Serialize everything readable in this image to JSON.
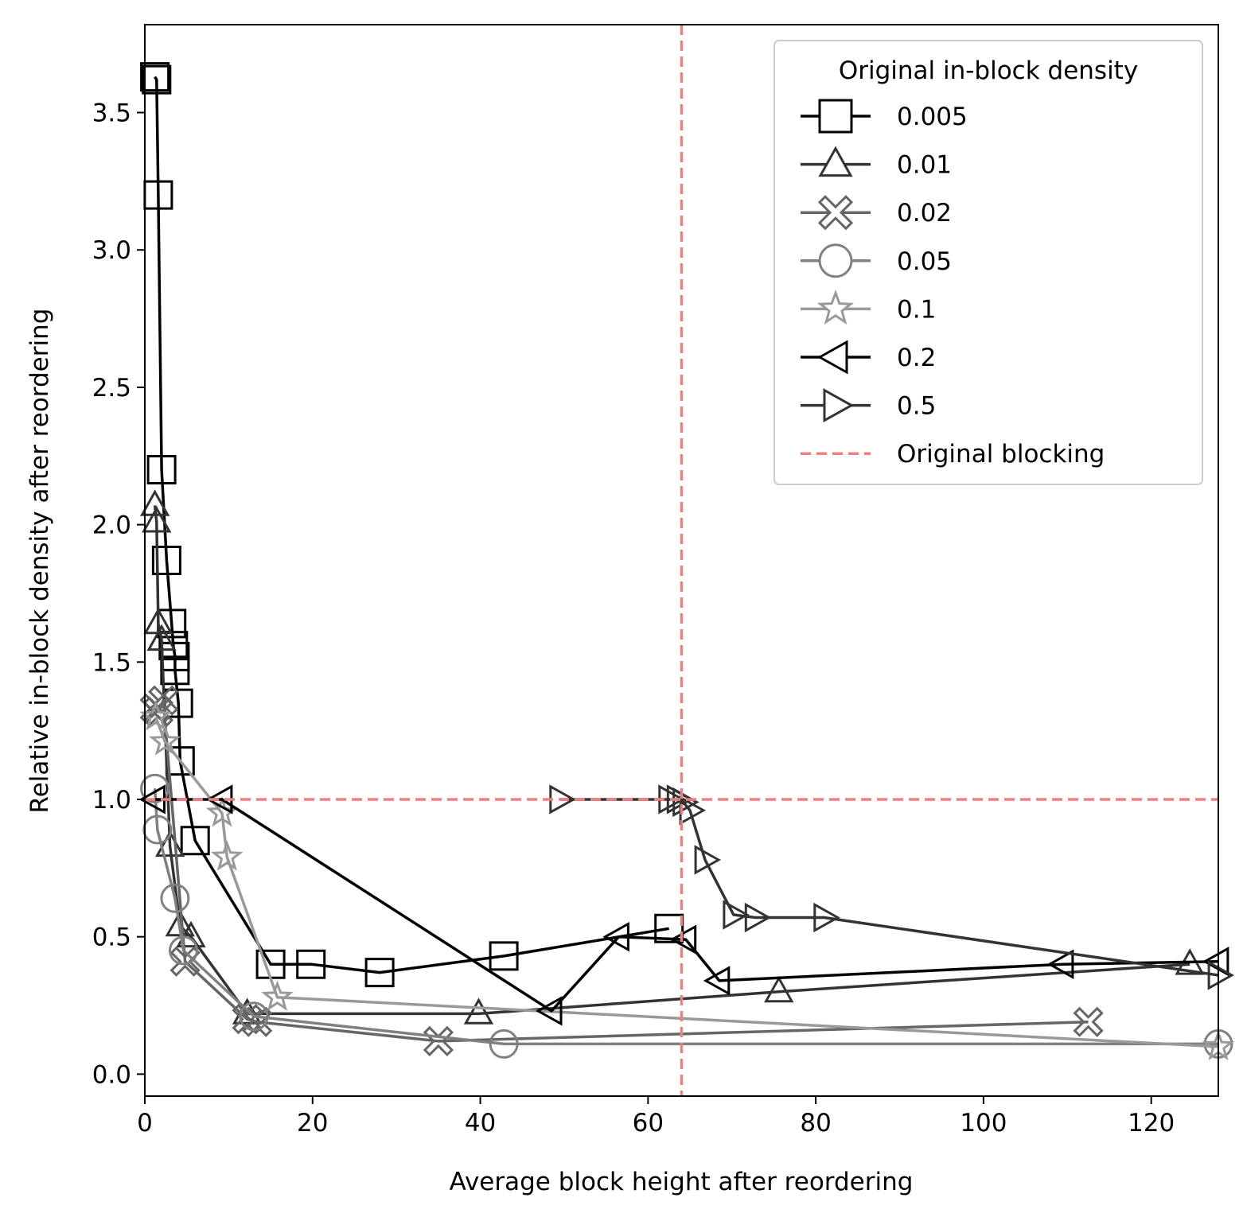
{
  "chart_data": {
    "type": "line",
    "xlabel": "Average block height after reordering",
    "ylabel": "Relative in-block density after reordering",
    "xlim": [
      0,
      128
    ],
    "ylim": [
      -0.08,
      3.82
    ],
    "xticks": [
      0,
      20,
      40,
      60,
      80,
      100,
      120
    ],
    "yticks": [
      0.0,
      0.5,
      1.0,
      1.5,
      2.0,
      2.5,
      3.0,
      3.5
    ],
    "ytick_labels": [
      "0.0",
      "0.5",
      "1.0",
      "1.5",
      "2.0",
      "2.5",
      "3.0",
      "3.5"
    ],
    "grid": false,
    "legend": {
      "title": "Original in-block density",
      "position": "top-right"
    },
    "series": [
      {
        "name": "0.005",
        "marker": "square",
        "color": "#000000",
        "x": [
          1.2,
          1.4,
          1.6,
          2.0,
          2.6,
          3.2,
          3.4,
          3.6,
          3.6,
          4.0,
          4.2,
          6.0,
          15.0,
          19.8,
          28.0,
          42.8,
          62.5
        ],
        "y": [
          3.63,
          3.62,
          3.2,
          2.2,
          1.87,
          1.64,
          1.56,
          1.52,
          1.47,
          1.35,
          1.14,
          0.85,
          0.4,
          0.4,
          0.37,
          0.43,
          0.53
        ]
      },
      {
        "name": "0.01",
        "marker": "triangle-up",
        "color": "#333333",
        "x": [
          1.2,
          1.4,
          1.6,
          2.0,
          3.0,
          4.2,
          5.5,
          12.2,
          39.8,
          75.6,
          124.6
        ],
        "y": [
          2.07,
          2.01,
          1.64,
          1.58,
          0.83,
          0.54,
          0.5,
          0.22,
          0.22,
          0.3,
          0.4
        ]
      },
      {
        "name": "0.02",
        "marker": "thick-x",
        "color": "#666666",
        "x": [
          1.2,
          1.6,
          2.2,
          4.8,
          12.2,
          13.4,
          35.0,
          112.5
        ],
        "y": [
          1.33,
          1.32,
          1.36,
          0.41,
          0.2,
          0.19,
          0.12,
          0.19
        ]
      },
      {
        "name": "0.05",
        "marker": "circle",
        "color": "#808080",
        "x": [
          1.2,
          1.5,
          3.6,
          4.6,
          13.0,
          42.8,
          128
        ],
        "y": [
          1.04,
          0.89,
          0.64,
          0.45,
          0.21,
          0.11,
          0.11
        ]
      },
      {
        "name": "0.1",
        "marker": "star",
        "color": "#999999",
        "x": [
          1.3,
          2.4,
          9.2,
          9.8,
          15.8,
          128
        ],
        "y": [
          1.3,
          1.21,
          0.95,
          0.79,
          0.28,
          0.1
        ]
      },
      {
        "name": "0.2",
        "marker": "triangle-left",
        "color": "#000000",
        "x": [
          1.2,
          9.2,
          48.5,
          56.5,
          64.5,
          68.5,
          109.5,
          128
        ],
        "y": [
          1.0,
          1.0,
          0.23,
          0.5,
          0.49,
          0.34,
          0.4,
          0.41
        ]
      },
      {
        "name": "0.5",
        "marker": "triangle-right",
        "color": "#333333",
        "x": [
          49.5,
          62.5,
          63.5,
          64.2,
          65.0,
          66.8,
          70.2,
          72.8,
          81.0,
          128
        ],
        "y": [
          1.0,
          1.0,
          1.0,
          0.99,
          0.96,
          0.78,
          0.58,
          0.57,
          0.57,
          0.36
        ]
      }
    ],
    "reference_lines": {
      "name": "Original blocking",
      "color": "#f08080",
      "x": 64,
      "y": 1.0,
      "style": "dashed"
    }
  }
}
